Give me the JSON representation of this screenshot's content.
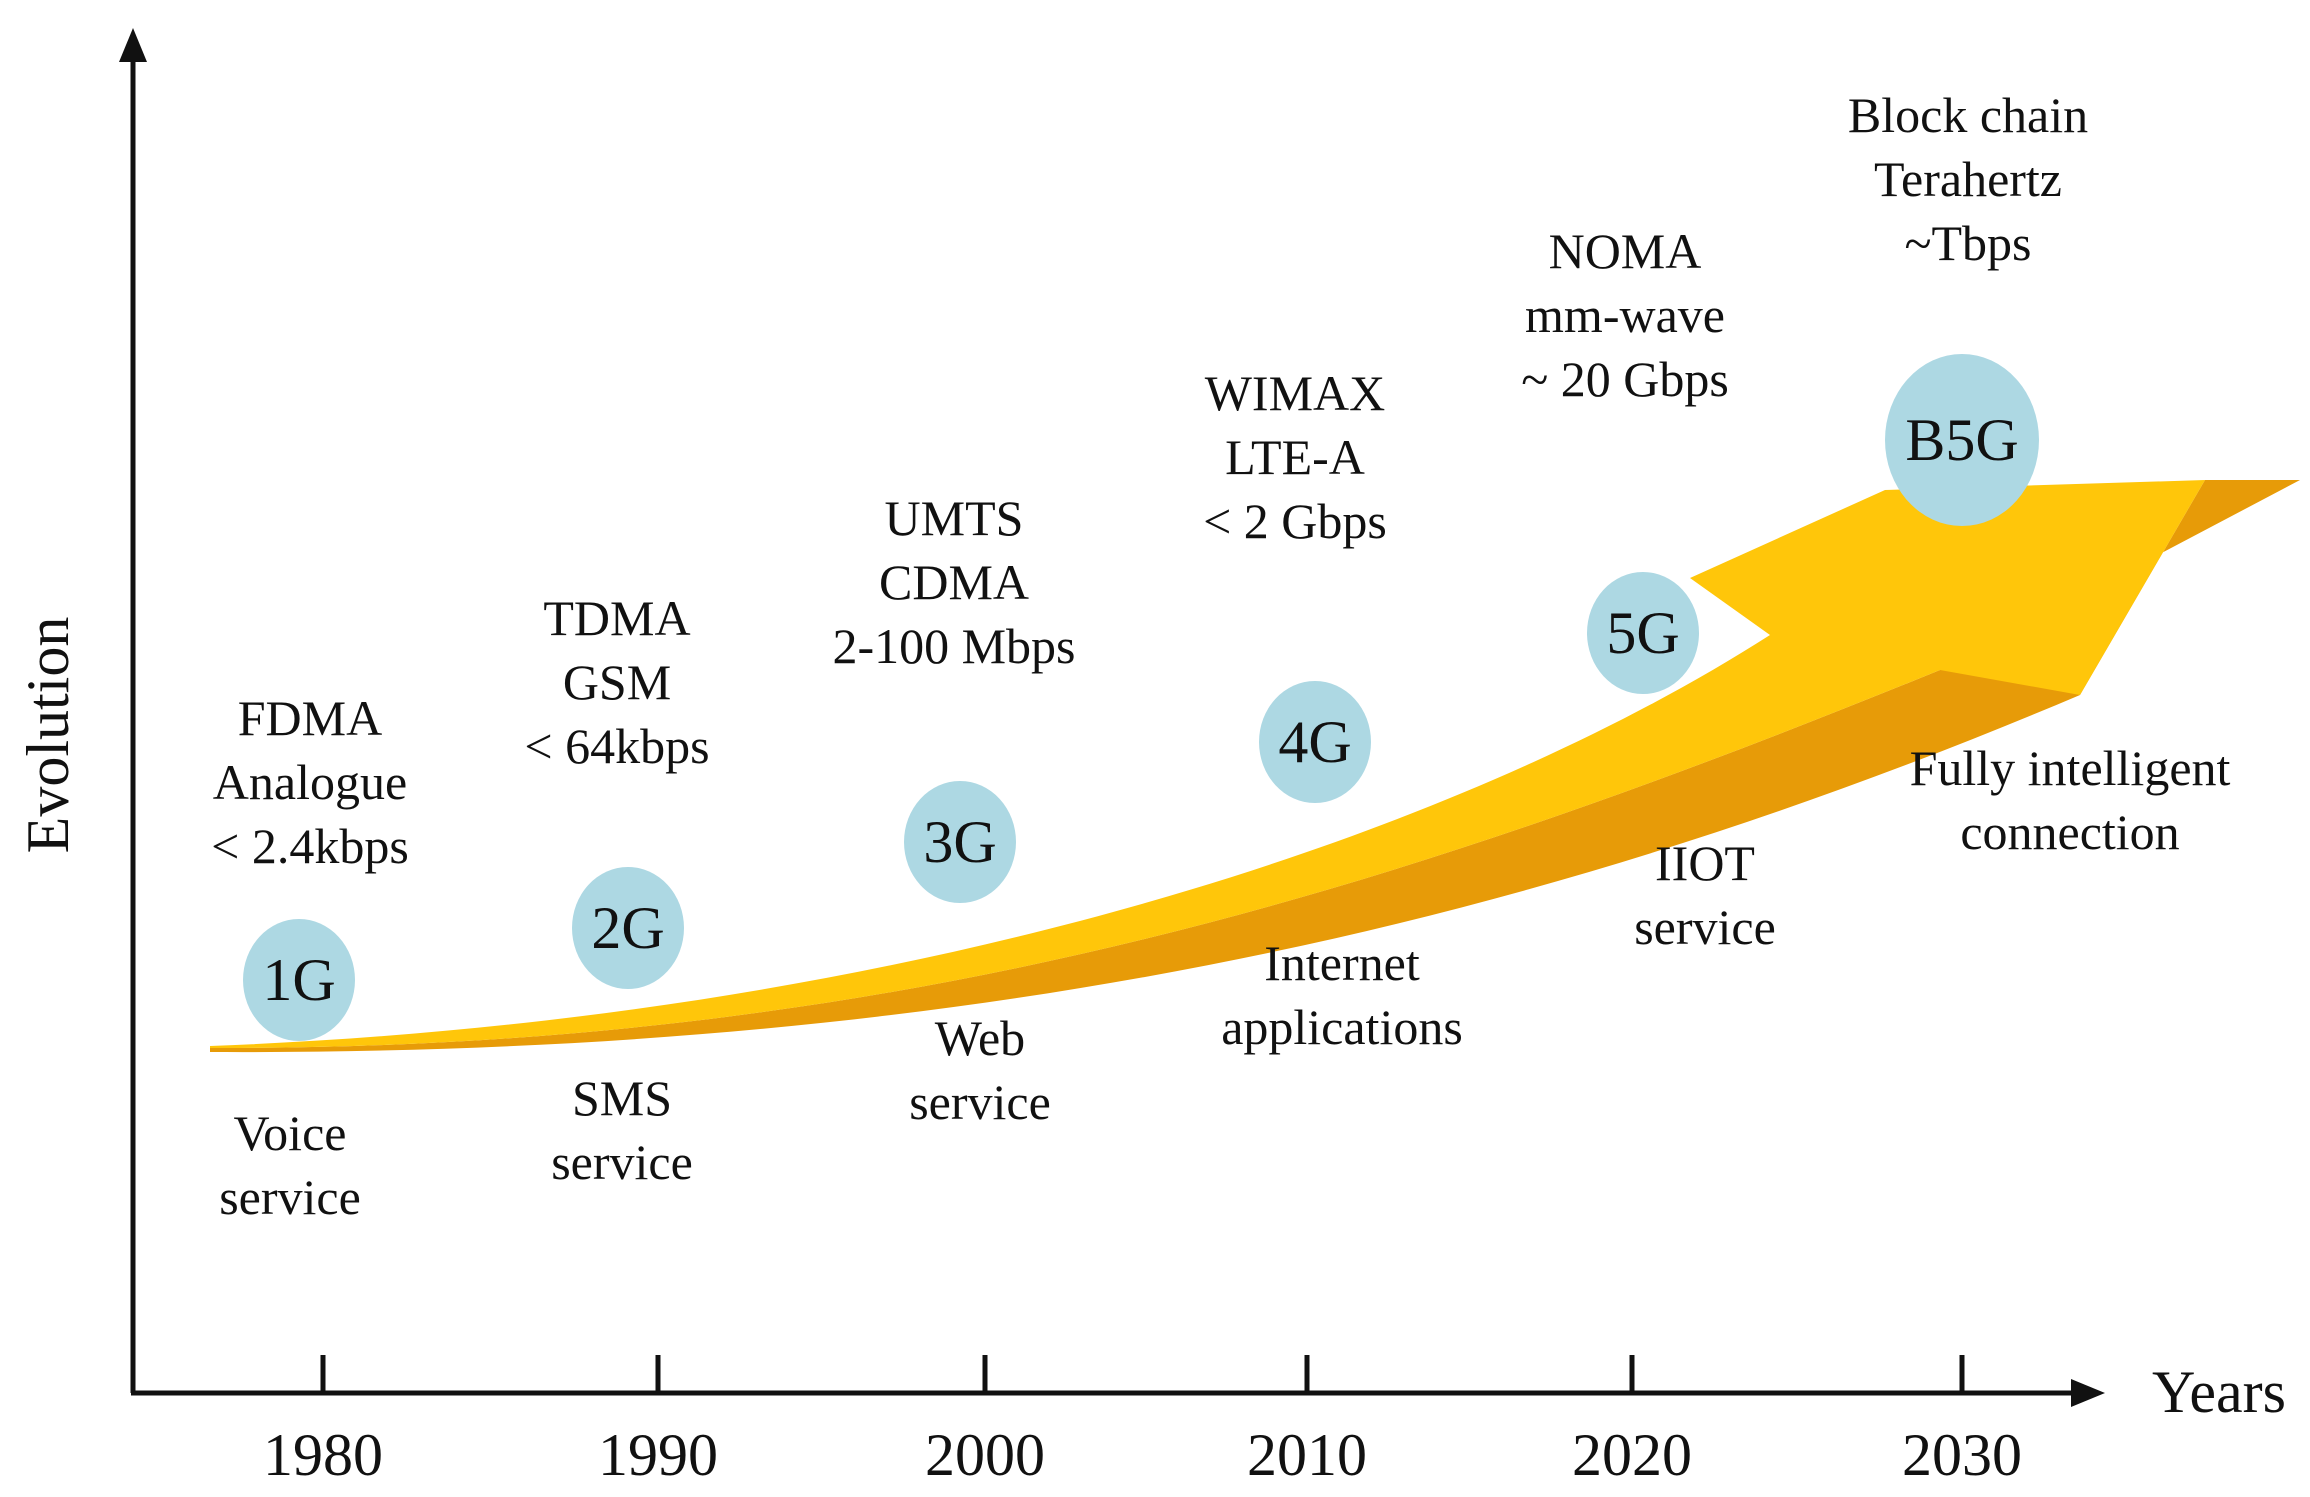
{
  "axes": {
    "y_title": "Evolution",
    "x_title": "Years",
    "ticks": [
      "1980",
      "1990",
      "2000",
      "2010",
      "2020",
      "2030"
    ]
  },
  "colors": {
    "arrow": "#FFC60A",
    "arrow_shadow": "#E79B08",
    "badge": "#ADD8E3",
    "axis": "#111111"
  },
  "generations": [
    {
      "badge": "1G",
      "tech": [
        "FDMA",
        "Analogue",
        "< 2.4kbps"
      ],
      "service": [
        "Voice",
        "service"
      ]
    },
    {
      "badge": "2G",
      "tech": [
        "TDMA",
        "GSM",
        "< 64kbps"
      ],
      "service": [
        "SMS",
        "service"
      ]
    },
    {
      "badge": "3G",
      "tech": [
        "UMTS",
        "CDMA",
        "2-100 Mbps"
      ],
      "service": [
        "Web",
        "service"
      ]
    },
    {
      "badge": "4G",
      "tech": [
        "WIMAX",
        "LTE-A",
        "< 2 Gbps"
      ],
      "service": [
        "Internet",
        "applications"
      ]
    },
    {
      "badge": "5G",
      "tech": [
        "NOMA",
        "mm-wave",
        "~ 20 Gbps"
      ],
      "service": [
        "IIOT",
        "service"
      ]
    },
    {
      "badge": "B5G",
      "tech": [
        "Block chain",
        "Terahertz",
        "~Tbps"
      ],
      "service": [
        "Fully intelligent",
        "connection"
      ]
    }
  ]
}
